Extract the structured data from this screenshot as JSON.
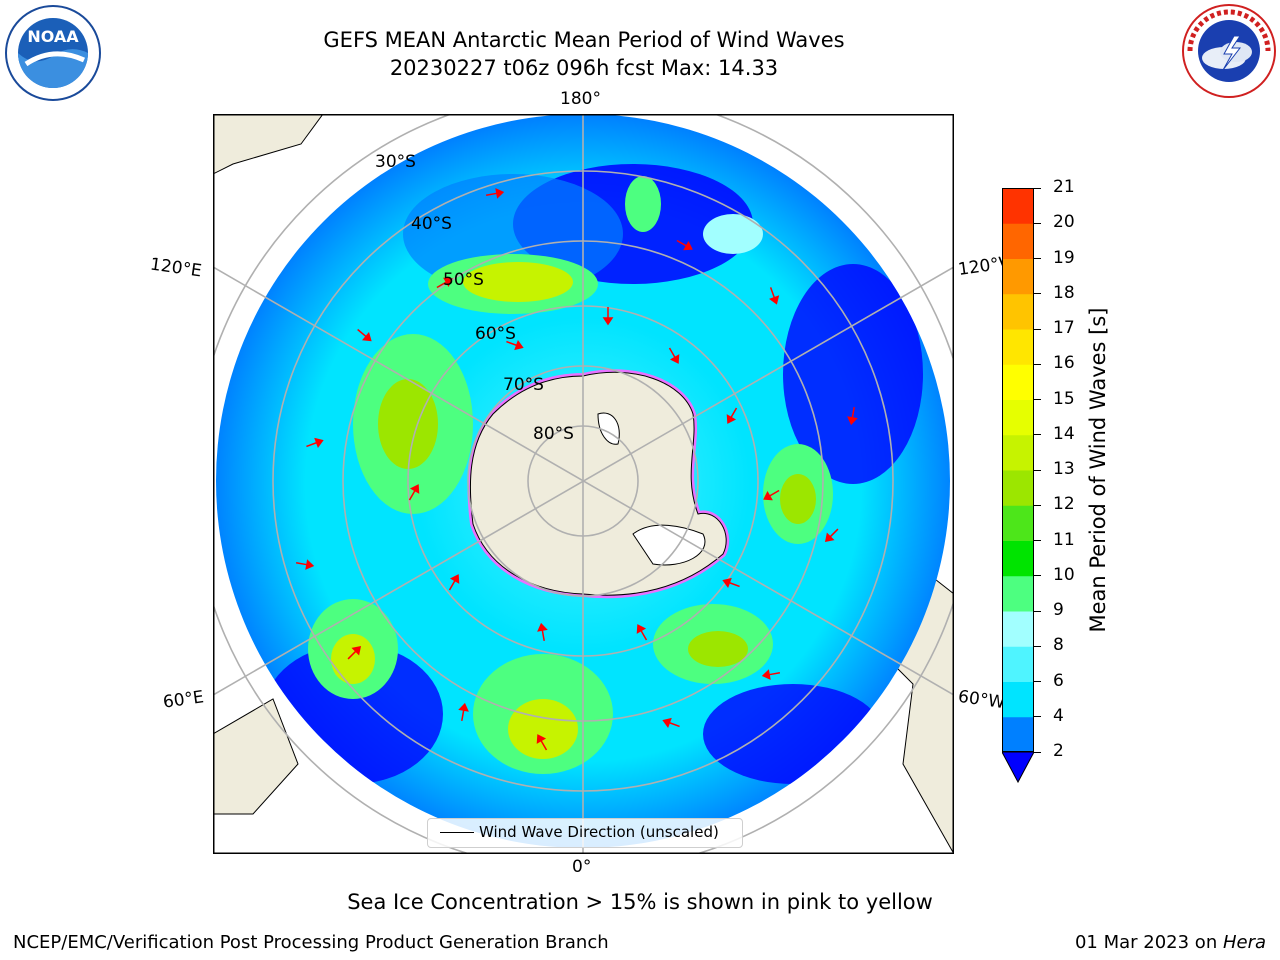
{
  "title": {
    "line1": "GEFS MEAN Antarctic Mean Period of Wind Waves",
    "line2": "20230227 t06z 096h fcst   Max: 14.33"
  },
  "map": {
    "projection": "south-polar-stereographic",
    "lon_labels": {
      "top": "180°",
      "bottom": "0°",
      "left_upper": "120°E",
      "left_lower": "60°E",
      "right_upper": "120°W",
      "right_lower": "60°W"
    },
    "lat_labels": [
      "30°S",
      "40°S",
      "50°S",
      "60°S",
      "70°S",
      "80°S"
    ],
    "legend_label": "Wind Wave Direction (unscaled)",
    "arrow_color": "#ff0000",
    "land_color": "#efecdc",
    "grid_color": "#b0b0b0"
  },
  "colorbar": {
    "label": "Mean Period of Wind Waves [s]",
    "ticks": [
      "2",
      "4",
      "6",
      "8",
      "9",
      "10",
      "11",
      "12",
      "13",
      "14",
      "15",
      "16",
      "17",
      "18",
      "19",
      "20",
      "21"
    ],
    "colors": [
      "#0080ff",
      "#00e4ff",
      "#4ff4ff",
      "#a2ffff",
      "#4dff80",
      "#00e400",
      "#4de61a",
      "#9ce600",
      "#c6f300",
      "#e6ff00",
      "#ffff00",
      "#ffe600",
      "#ffc400",
      "#ff9900",
      "#ff6600",
      "#ff3300"
    ],
    "extend_color": "#0000ff"
  },
  "annotation": "Sea Ice Concentration > 15% is shown in pink to yellow",
  "footer": {
    "left": "NCEP/EMC/Verification Post Processing Product Generation Branch",
    "right_prefix": "01 Mar 2023 on ",
    "right_host": "Hera"
  },
  "logos": {
    "noaa": "NOAA",
    "nws_ring": "NATIONAL WEATHER SERVICE"
  }
}
